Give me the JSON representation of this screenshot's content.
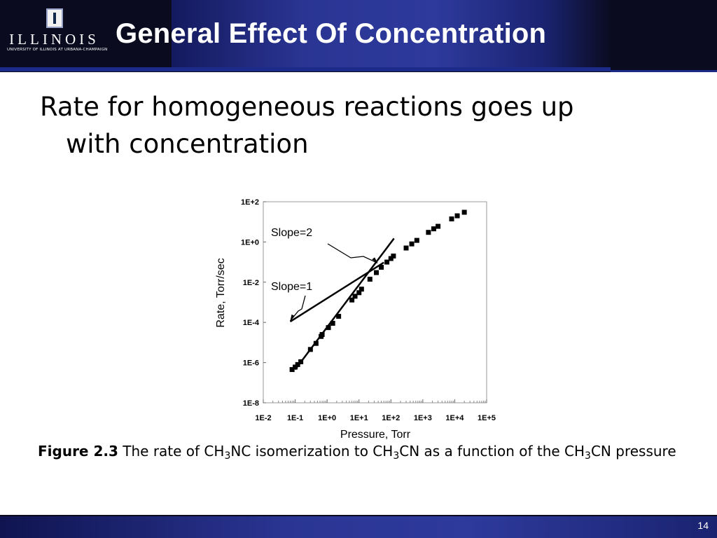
{
  "header": {
    "title": "General Effect Of Concentration",
    "logo_text": "ILLINOIS",
    "logo_subtext": "UNIVERSITY OF ILLINOIS AT URBANA-CHAMPAIGN"
  },
  "body": {
    "line1": "Rate for homogeneous reactions goes up",
    "line2": "with concentration"
  },
  "caption": {
    "figure_label": "Figure 2.3",
    "text_1": " The rate of CH",
    "sub_1": "3",
    "text_2": "NC isomerization to CH",
    "sub_2": "3",
    "text_3": "CN as a function of the CH",
    "sub_3": "3",
    "text_4": "CN pressure"
  },
  "footer": {
    "page_number": "14"
  },
  "colors": {
    "header_bg": "#0b0b20",
    "band_blue": "#2e3a9c",
    "rule_blue": "#1c2a8a"
  },
  "chart_data": {
    "type": "scatter",
    "title": "",
    "xlabel": "Pressure, Torr",
    "ylabel": "Rate, Torr/sec",
    "x_scale": "log",
    "y_scale": "log",
    "xlim": [
      0.01,
      100000
    ],
    "ylim": [
      1e-08,
      100
    ],
    "x_tick_labels": [
      "1E-2",
      "1E-1",
      "1E+0",
      "1E+1",
      "1E+2",
      "1E+3",
      "1E+4",
      "1E+5"
    ],
    "y_tick_labels": [
      "1E-8",
      "1E-6",
      "1E-4",
      "1E-2",
      "1E+0",
      "1E+2"
    ],
    "grid": false,
    "points": [
      {
        "x": 0.08,
        "y": 4.5e-07
      },
      {
        "x": 0.1,
        "y": 6e-07
      },
      {
        "x": 0.12,
        "y": 8e-07
      },
      {
        "x": 0.15,
        "y": 1.1e-06
      },
      {
        "x": 0.3,
        "y": 4.5e-06
      },
      {
        "x": 0.45,
        "y": 9e-06
      },
      {
        "x": 0.65,
        "y": 2e-05
      },
      {
        "x": 0.7,
        "y": 2.5e-05
      },
      {
        "x": 1.1,
        "y": 5.5e-05
      },
      {
        "x": 1.5,
        "y": 9e-05
      },
      {
        "x": 2.3,
        "y": 0.0002
      },
      {
        "x": 6,
        "y": 0.0013
      },
      {
        "x": 7.5,
        "y": 0.002
      },
      {
        "x": 10,
        "y": 0.003
      },
      {
        "x": 12,
        "y": 0.0045
      },
      {
        "x": 22,
        "y": 0.014
      },
      {
        "x": 35,
        "y": 0.03
      },
      {
        "x": 50,
        "y": 0.055
      },
      {
        "x": 75,
        "y": 0.1
      },
      {
        "x": 100,
        "y": 0.15
      },
      {
        "x": 120,
        "y": 0.2
      },
      {
        "x": 300,
        "y": 0.5
      },
      {
        "x": 450,
        "y": 0.8
      },
      {
        "x": 650,
        "y": 1.2
      },
      {
        "x": 1500,
        "y": 3
      },
      {
        "x": 2200,
        "y": 4.5
      },
      {
        "x": 3000,
        "y": 6
      },
      {
        "x": 8000,
        "y": 14
      },
      {
        "x": 12000,
        "y": 20
      },
      {
        "x": 20000,
        "y": 30
      }
    ],
    "lines": [
      {
        "label": "Slope=2",
        "from": {
          "x": 0.1,
          "y": 4.5e-07
        },
        "to": {
          "x": 125,
          "y": 1.5
        }
      },
      {
        "label": "Slope=1",
        "from": {
          "x": 0.07,
          "y": 0.00011
        },
        "to": {
          "x": 60,
          "y": 0.095
        }
      }
    ],
    "annotations": [
      {
        "text": "Slope=2",
        "points_to": {
          "x": 38,
          "y": 0.09
        }
      },
      {
        "text": "Slope=1",
        "points_to": {
          "x": 0.07,
          "y": 0.00012
        }
      }
    ]
  }
}
